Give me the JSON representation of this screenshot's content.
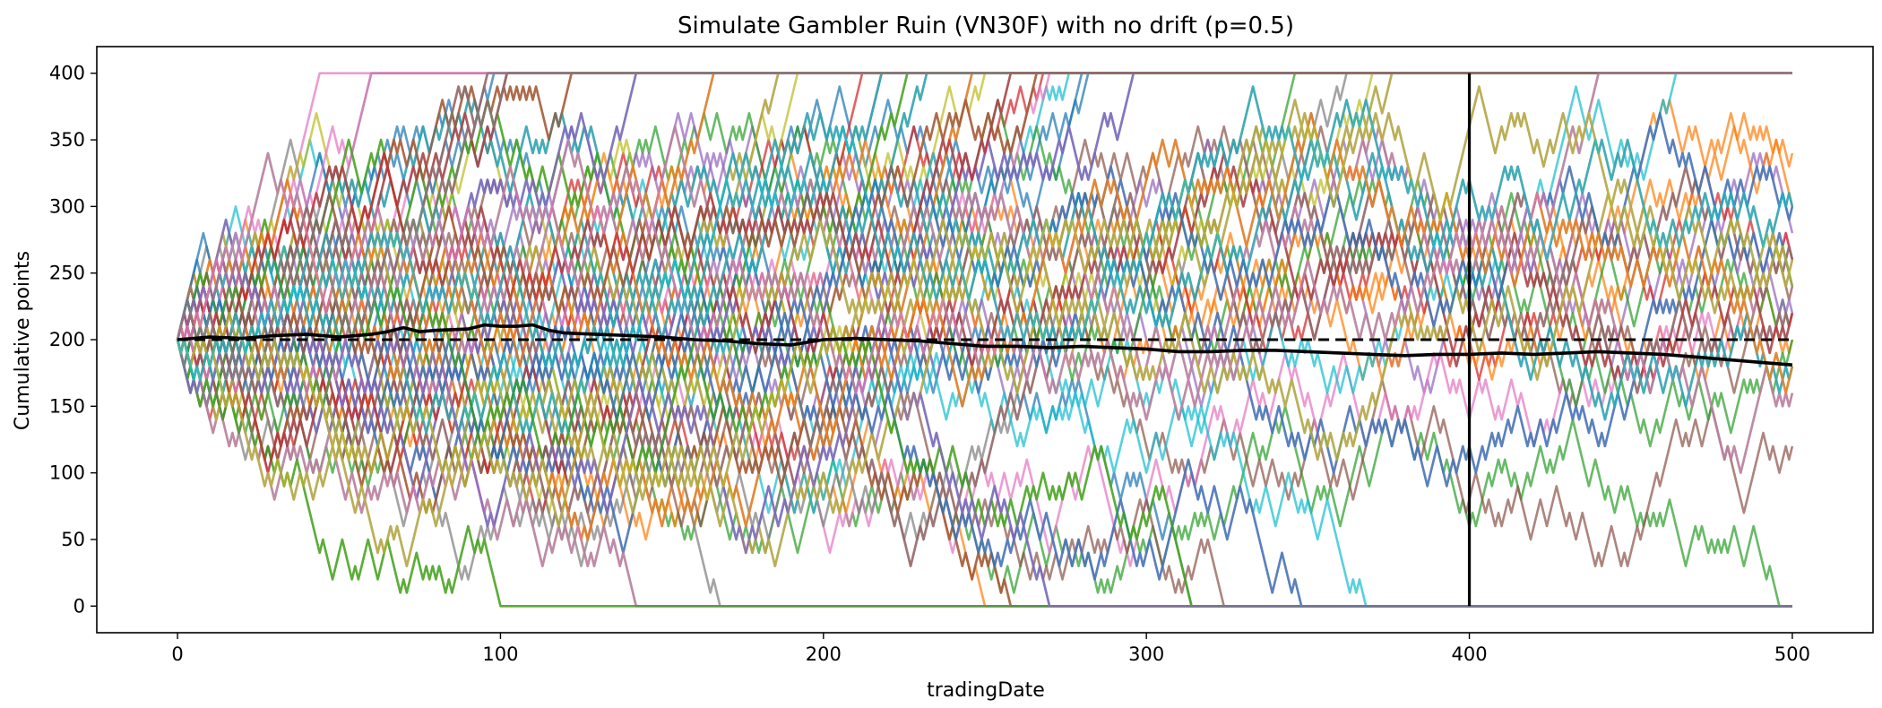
{
  "chart_data": {
    "type": "line",
    "title": "Simulate Gambler Ruin (VN30F) with no drift (p=0.5)",
    "xlabel": "tradingDate",
    "ylabel": "Cumulative points",
    "xlim": [
      -25,
      525
    ],
    "ylim": [
      -20,
      420
    ],
    "xticks": [
      0,
      100,
      200,
      300,
      400,
      500
    ],
    "yticks": [
      0,
      50,
      100,
      150,
      200,
      250,
      300,
      350,
      400
    ],
    "grid": false,
    "legend": "none",
    "simulation": {
      "start": 200,
      "step": 10,
      "upper_barrier": 400,
      "lower_barrier": 0,
      "n_steps": 500,
      "n_paths": 100,
      "p": 0.5
    },
    "palette": [
      "#1f77b4",
      "#ff7f0e",
      "#2ca02c",
      "#d62728",
      "#9467bd",
      "#8c564b",
      "#e377c2",
      "#7f7f7f",
      "#bcbd22",
      "#17becf"
    ],
    "reference_lines": [
      {
        "kind": "horizontal",
        "y": 200,
        "style": "dashed",
        "color": "#000000"
      },
      {
        "kind": "vertical",
        "x": 400,
        "y_range": [
          0,
          400
        ],
        "style": "solid",
        "color": "#000000"
      }
    ],
    "mean_path": {
      "color": "#000000",
      "x": [
        0,
        10,
        20,
        30,
        40,
        50,
        60,
        65,
        70,
        75,
        80,
        90,
        95,
        100,
        105,
        110,
        115,
        120,
        130,
        140,
        150,
        160,
        170,
        180,
        190,
        200,
        210,
        220,
        230,
        240,
        250,
        260,
        270,
        280,
        290,
        300,
        310,
        320,
        330,
        340,
        350,
        360,
        370,
        380,
        390,
        400,
        410,
        420,
        430,
        440,
        450,
        460,
        470,
        480,
        490,
        500
      ],
      "y": [
        200,
        202,
        201,
        203,
        204,
        202,
        204,
        206,
        209,
        206,
        207,
        208,
        211,
        210,
        210,
        211,
        207,
        205,
        204,
        203,
        202,
        200,
        199,
        197,
        196,
        200,
        201,
        200,
        199,
        197,
        195,
        195,
        194,
        195,
        194,
        193,
        191,
        191,
        192,
        192,
        191,
        190,
        189,
        188,
        189,
        189,
        190,
        189,
        190,
        191,
        190,
        189,
        187,
        185,
        183,
        181
      ]
    }
  }
}
